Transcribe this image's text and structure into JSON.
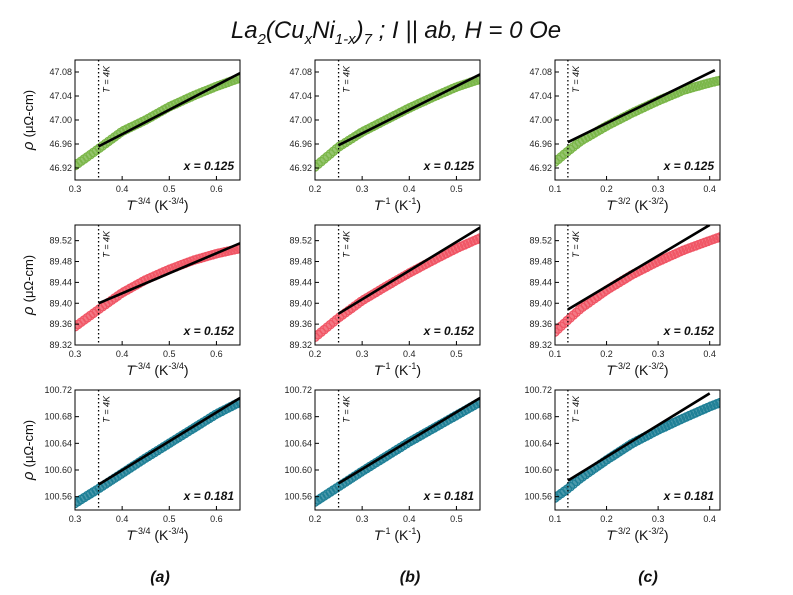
{
  "figure": {
    "title": {
      "prefix": "La",
      "s1": "2",
      "mid1": "(Cu",
      "s2": "x",
      "mid2": "Ni",
      "s3": "1-x",
      "mid3": ")",
      "s4": "7",
      "suffix": " ; I || ab, H = 0 Oe"
    },
    "panel_labels": [
      "(a)",
      "(b)",
      "(c)"
    ],
    "ylabel": {
      "rho": "ρ",
      "unit": "(μΩ-cm)"
    },
    "temp_annotation": "T = 4K"
  },
  "chart_data": [
    {
      "type": "scatter",
      "panel": "a",
      "row": 1,
      "x_label_base": "T",
      "x_label_exp": "-3/4",
      "x_label_unit": "(K",
      "x_label_unit_exp": "-3/4",
      "x_label_close": ")",
      "annotation": "x = 0.125",
      "color": "#7ab648",
      "xlim": [
        0.3,
        0.65
      ],
      "ylim": [
        46.9,
        47.1
      ],
      "xticks": [
        "0.3",
        "0.4",
        "0.5",
        "0.6"
      ],
      "yticks": [
        "46.92",
        "46.96",
        "47.00",
        "47.04",
        "47.08"
      ],
      "vline_x": 0.35,
      "data_x": [
        0.3,
        0.35,
        0.4,
        0.45,
        0.5,
        0.55,
        0.6,
        0.65
      ],
      "data_y": [
        46.924,
        46.952,
        46.981,
        47.0,
        47.022,
        47.04,
        47.056,
        47.07
      ],
      "fit_x": [
        0.35,
        0.65
      ],
      "fit_y": [
        46.956,
        47.078
      ]
    },
    {
      "type": "scatter",
      "panel": "b",
      "row": 1,
      "x_label_base": "T",
      "x_label_exp": "-1",
      "x_label_unit": "(K",
      "x_label_unit_exp": "-1",
      "x_label_close": ")",
      "annotation": "x = 0.125",
      "color": "#7ab648",
      "xlim": [
        0.2,
        0.55
      ],
      "ylim": [
        46.9,
        47.1
      ],
      "xticks": [
        "0.2",
        "0.3",
        "0.4",
        "0.5"
      ],
      "yticks": [
        "46.92",
        "46.96",
        "47.00",
        "47.04",
        "47.08"
      ],
      "vline_x": 0.25,
      "data_x": [
        0.2,
        0.25,
        0.3,
        0.35,
        0.4,
        0.45,
        0.5,
        0.55
      ],
      "data_y": [
        46.922,
        46.955,
        46.98,
        47.0,
        47.02,
        47.038,
        47.055,
        47.068
      ],
      "fit_x": [
        0.25,
        0.55
      ],
      "fit_y": [
        46.958,
        47.076
      ]
    },
    {
      "type": "scatter",
      "panel": "c",
      "row": 1,
      "x_label_base": "T",
      "x_label_exp": "-3/2",
      "x_label_unit": "(K",
      "x_label_unit_exp": "-3/2",
      "x_label_close": ")",
      "annotation": "x = 0.125",
      "color": "#7ab648",
      "xlim": [
        0.1,
        0.42
      ],
      "ylim": [
        46.9,
        47.1
      ],
      "xticks": [
        "0.1",
        "0.2",
        "0.3",
        "0.4"
      ],
      "yticks": [
        "46.92",
        "46.96",
        "47.00",
        "47.04",
        "47.08"
      ],
      "vline_x": 0.125,
      "data_x": [
        0.1,
        0.125,
        0.15,
        0.2,
        0.25,
        0.3,
        0.35,
        0.4,
        0.42
      ],
      "data_y": [
        46.93,
        46.948,
        46.965,
        46.99,
        47.012,
        47.032,
        47.05,
        47.062,
        47.066
      ],
      "fit_x": [
        0.125,
        0.41
      ],
      "fit_y": [
        46.963,
        47.083
      ]
    },
    {
      "type": "scatter",
      "panel": "a",
      "row": 2,
      "x_label_base": "T",
      "x_label_exp": "-3/4",
      "x_label_unit": "(K",
      "x_label_unit_exp": "-3/4",
      "x_label_close": ")",
      "annotation": "x = 0.152",
      "color": "#f05565",
      "xlim": [
        0.3,
        0.65
      ],
      "ylim": [
        89.32,
        89.55
      ],
      "xticks": [
        "0.3",
        "0.4",
        "0.5",
        "0.6"
      ],
      "yticks": [
        "89.32",
        "89.36",
        "89.40",
        "89.44",
        "89.48",
        "89.52"
      ],
      "vline_x": 0.35,
      "data_x": [
        0.3,
        0.35,
        0.4,
        0.45,
        0.5,
        0.55,
        0.6,
        0.65
      ],
      "data_y": [
        89.355,
        89.388,
        89.42,
        89.445,
        89.465,
        89.482,
        89.495,
        89.505
      ],
      "fit_x": [
        0.35,
        0.65
      ],
      "fit_y": [
        89.4,
        89.515
      ]
    },
    {
      "type": "scatter",
      "panel": "b",
      "row": 2,
      "x_label_base": "T",
      "x_label_exp": "-1",
      "x_label_unit": "(K",
      "x_label_unit_exp": "-1",
      "x_label_close": ")",
      "annotation": "x = 0.152",
      "color": "#f05565",
      "xlim": [
        0.2,
        0.55
      ],
      "ylim": [
        89.32,
        89.55
      ],
      "xticks": [
        "0.2",
        "0.3",
        "0.4",
        "0.5"
      ],
      "yticks": [
        "89.32",
        "89.36",
        "89.40",
        "89.44",
        "89.48",
        "89.52"
      ],
      "vline_x": 0.25,
      "data_x": [
        0.2,
        0.25,
        0.3,
        0.35,
        0.4,
        0.45,
        0.5,
        0.55
      ],
      "data_y": [
        89.335,
        89.372,
        89.405,
        89.432,
        89.458,
        89.482,
        89.505,
        89.525
      ],
      "fit_x": [
        0.25,
        0.55
      ],
      "fit_y": [
        89.38,
        89.545
      ]
    },
    {
      "type": "scatter",
      "panel": "c",
      "row": 2,
      "x_label_base": "T",
      "x_label_exp": "-3/2",
      "x_label_unit": "(K",
      "x_label_unit_exp": "-3/2",
      "x_label_close": ")",
      "annotation": "x = 0.152",
      "color": "#f05565",
      "xlim": [
        0.1,
        0.42
      ],
      "ylim": [
        89.32,
        89.55
      ],
      "xticks": [
        "0.1",
        "0.2",
        "0.3",
        "0.4"
      ],
      "yticks": [
        "89.32",
        "89.36",
        "89.40",
        "89.44",
        "89.48",
        "89.52"
      ],
      "vline_x": 0.125,
      "data_x": [
        0.1,
        0.125,
        0.15,
        0.2,
        0.25,
        0.3,
        0.35,
        0.4,
        0.42
      ],
      "data_y": [
        89.345,
        89.368,
        89.39,
        89.425,
        89.455,
        89.48,
        89.502,
        89.52,
        89.527
      ],
      "fit_x": [
        0.125,
        0.4
      ],
      "fit_y": [
        89.388,
        89.55
      ]
    },
    {
      "type": "scatter",
      "panel": "a",
      "row": 3,
      "x_label_base": "T",
      "x_label_exp": "-3/4",
      "x_label_unit": "(K",
      "x_label_unit_exp": "-3/4",
      "x_label_close": ")",
      "annotation": "x = 0.181",
      "color": "#1e7f96",
      "xlim": [
        0.3,
        0.65
      ],
      "ylim": [
        100.54,
        100.72
      ],
      "xticks": [
        "0.3",
        "0.4",
        "0.5",
        "0.6"
      ],
      "yticks": [
        "100.56",
        "100.60",
        "100.64",
        "100.68",
        "100.72"
      ],
      "vline_x": 0.35,
      "data_x": [
        0.3,
        0.35,
        0.4,
        0.45,
        0.5,
        0.55,
        0.6,
        0.65
      ],
      "data_y": [
        100.55,
        100.572,
        100.595,
        100.618,
        100.64,
        100.662,
        100.684,
        100.702
      ],
      "fit_x": [
        0.35,
        0.65
      ],
      "fit_y": [
        100.578,
        100.708
      ]
    },
    {
      "type": "scatter",
      "panel": "b",
      "row": 3,
      "x_label_base": "T",
      "x_label_exp": "-1",
      "x_label_unit": "(K",
      "x_label_unit_exp": "-1",
      "x_label_close": ")",
      "annotation": "x = 0.181",
      "color": "#1e7f96",
      "xlim": [
        0.2,
        0.55
      ],
      "ylim": [
        100.54,
        100.72
      ],
      "xticks": [
        "0.2",
        "0.3",
        "0.4",
        "0.5"
      ],
      "yticks": [
        "100.56",
        "100.60",
        "100.64",
        "100.68",
        "100.72"
      ],
      "vline_x": 0.25,
      "data_x": [
        0.2,
        0.25,
        0.3,
        0.35,
        0.4,
        0.45,
        0.5,
        0.55
      ],
      "data_y": [
        100.552,
        100.575,
        100.598,
        100.62,
        100.642,
        100.662,
        100.682,
        100.702
      ],
      "fit_x": [
        0.25,
        0.55
      ],
      "fit_y": [
        100.58,
        100.708
      ]
    },
    {
      "type": "scatter",
      "panel": "c",
      "row": 3,
      "x_label_base": "T",
      "x_label_exp": "-3/2",
      "x_label_unit": "(K",
      "x_label_unit_exp": "-3/2",
      "x_label_close": ")",
      "annotation": "x = 0.181",
      "color": "#1e7f96",
      "xlim": [
        0.1,
        0.42
      ],
      "ylim": [
        100.54,
        100.72
      ],
      "xticks": [
        "0.1",
        "0.2",
        "0.3",
        "0.4"
      ],
      "yticks": [
        "100.56",
        "100.60",
        "100.64",
        "100.68",
        "100.72"
      ],
      "vline_x": 0.125,
      "data_x": [
        0.1,
        0.125,
        0.15,
        0.2,
        0.25,
        0.3,
        0.35,
        0.4,
        0.42
      ],
      "data_y": [
        100.558,
        100.572,
        100.588,
        100.615,
        100.64,
        100.66,
        100.678,
        100.695,
        100.701
      ],
      "fit_x": [
        0.125,
        0.4
      ],
      "fit_y": [
        100.584,
        100.715
      ]
    }
  ]
}
